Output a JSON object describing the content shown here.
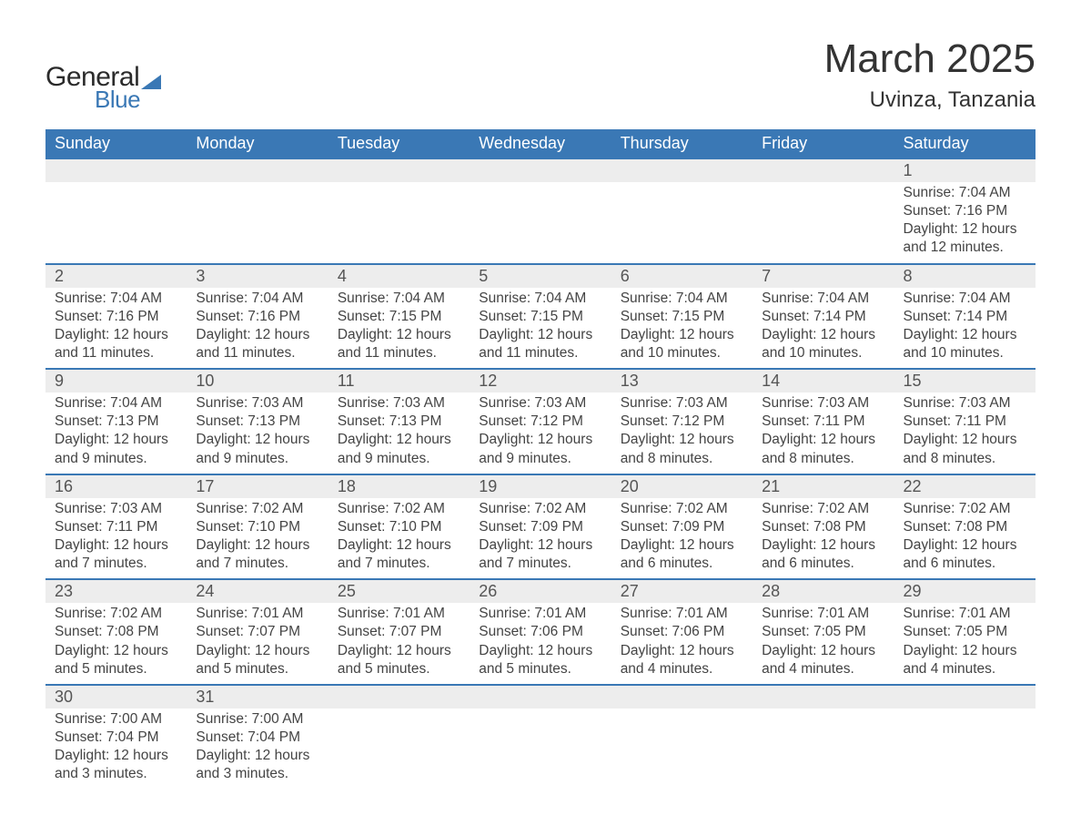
{
  "brand": {
    "name_a": "General",
    "name_b": "Blue"
  },
  "title": {
    "month": "March 2025",
    "location": "Uvinza, Tanzania"
  },
  "style": {
    "header_bg": "#3a78b5",
    "header_text": "#ffffff",
    "daynum_bg": "#ededed",
    "row_border": "#3a78b5",
    "body_text": "#444444",
    "page_bg": "#ffffff",
    "title_fontsize": 44,
    "location_fontsize": 24,
    "dayhead_fontsize": 18,
    "cell_fontsize": 15.5
  },
  "calendar": {
    "columns": [
      "Sunday",
      "Monday",
      "Tuesday",
      "Wednesday",
      "Thursday",
      "Friday",
      "Saturday"
    ],
    "weeks": [
      [
        null,
        null,
        null,
        null,
        null,
        null,
        {
          "n": "1",
          "sunrise": "7:04 AM",
          "sunset": "7:16 PM",
          "daylight": "12 hours and 12 minutes."
        }
      ],
      [
        {
          "n": "2",
          "sunrise": "7:04 AM",
          "sunset": "7:16 PM",
          "daylight": "12 hours and 11 minutes."
        },
        {
          "n": "3",
          "sunrise": "7:04 AM",
          "sunset": "7:16 PM",
          "daylight": "12 hours and 11 minutes."
        },
        {
          "n": "4",
          "sunrise": "7:04 AM",
          "sunset": "7:15 PM",
          "daylight": "12 hours and 11 minutes."
        },
        {
          "n": "5",
          "sunrise": "7:04 AM",
          "sunset": "7:15 PM",
          "daylight": "12 hours and 11 minutes."
        },
        {
          "n": "6",
          "sunrise": "7:04 AM",
          "sunset": "7:15 PM",
          "daylight": "12 hours and 10 minutes."
        },
        {
          "n": "7",
          "sunrise": "7:04 AM",
          "sunset": "7:14 PM",
          "daylight": "12 hours and 10 minutes."
        },
        {
          "n": "8",
          "sunrise": "7:04 AM",
          "sunset": "7:14 PM",
          "daylight": "12 hours and 10 minutes."
        }
      ],
      [
        {
          "n": "9",
          "sunrise": "7:04 AM",
          "sunset": "7:13 PM",
          "daylight": "12 hours and 9 minutes."
        },
        {
          "n": "10",
          "sunrise": "7:03 AM",
          "sunset": "7:13 PM",
          "daylight": "12 hours and 9 minutes."
        },
        {
          "n": "11",
          "sunrise": "7:03 AM",
          "sunset": "7:13 PM",
          "daylight": "12 hours and 9 minutes."
        },
        {
          "n": "12",
          "sunrise": "7:03 AM",
          "sunset": "7:12 PM",
          "daylight": "12 hours and 9 minutes."
        },
        {
          "n": "13",
          "sunrise": "7:03 AM",
          "sunset": "7:12 PM",
          "daylight": "12 hours and 8 minutes."
        },
        {
          "n": "14",
          "sunrise": "7:03 AM",
          "sunset": "7:11 PM",
          "daylight": "12 hours and 8 minutes."
        },
        {
          "n": "15",
          "sunrise": "7:03 AM",
          "sunset": "7:11 PM",
          "daylight": "12 hours and 8 minutes."
        }
      ],
      [
        {
          "n": "16",
          "sunrise": "7:03 AM",
          "sunset": "7:11 PM",
          "daylight": "12 hours and 7 minutes."
        },
        {
          "n": "17",
          "sunrise": "7:02 AM",
          "sunset": "7:10 PM",
          "daylight": "12 hours and 7 minutes."
        },
        {
          "n": "18",
          "sunrise": "7:02 AM",
          "sunset": "7:10 PM",
          "daylight": "12 hours and 7 minutes."
        },
        {
          "n": "19",
          "sunrise": "7:02 AM",
          "sunset": "7:09 PM",
          "daylight": "12 hours and 7 minutes."
        },
        {
          "n": "20",
          "sunrise": "7:02 AM",
          "sunset": "7:09 PM",
          "daylight": "12 hours and 6 minutes."
        },
        {
          "n": "21",
          "sunrise": "7:02 AM",
          "sunset": "7:08 PM",
          "daylight": "12 hours and 6 minutes."
        },
        {
          "n": "22",
          "sunrise": "7:02 AM",
          "sunset": "7:08 PM",
          "daylight": "12 hours and 6 minutes."
        }
      ],
      [
        {
          "n": "23",
          "sunrise": "7:02 AM",
          "sunset": "7:08 PM",
          "daylight": "12 hours and 5 minutes."
        },
        {
          "n": "24",
          "sunrise": "7:01 AM",
          "sunset": "7:07 PM",
          "daylight": "12 hours and 5 minutes."
        },
        {
          "n": "25",
          "sunrise": "7:01 AM",
          "sunset": "7:07 PM",
          "daylight": "12 hours and 5 minutes."
        },
        {
          "n": "26",
          "sunrise": "7:01 AM",
          "sunset": "7:06 PM",
          "daylight": "12 hours and 5 minutes."
        },
        {
          "n": "27",
          "sunrise": "7:01 AM",
          "sunset": "7:06 PM",
          "daylight": "12 hours and 4 minutes."
        },
        {
          "n": "28",
          "sunrise": "7:01 AM",
          "sunset": "7:05 PM",
          "daylight": "12 hours and 4 minutes."
        },
        {
          "n": "29",
          "sunrise": "7:01 AM",
          "sunset": "7:05 PM",
          "daylight": "12 hours and 4 minutes."
        }
      ],
      [
        {
          "n": "30",
          "sunrise": "7:00 AM",
          "sunset": "7:04 PM",
          "daylight": "12 hours and 3 minutes."
        },
        {
          "n": "31",
          "sunrise": "7:00 AM",
          "sunset": "7:04 PM",
          "daylight": "12 hours and 3 minutes."
        },
        null,
        null,
        null,
        null,
        null
      ]
    ],
    "labels": {
      "sunrise": "Sunrise: ",
      "sunset": "Sunset: ",
      "daylight": "Daylight: "
    }
  }
}
